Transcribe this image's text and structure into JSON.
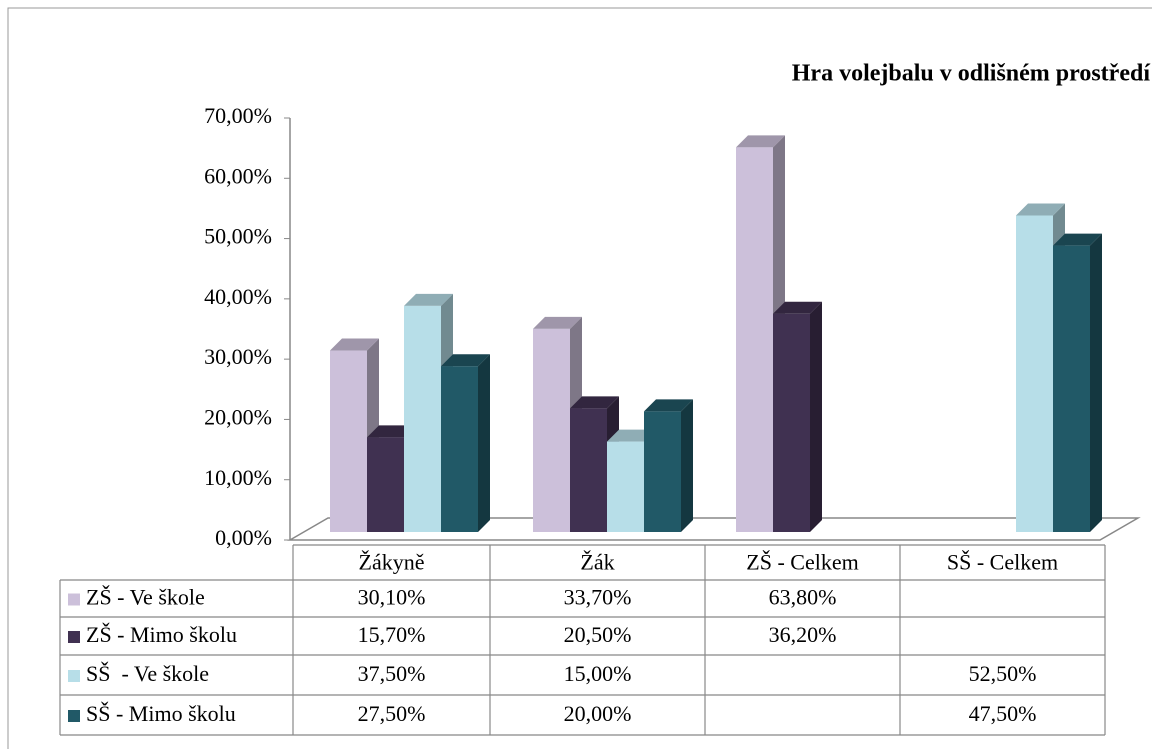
{
  "chart_data": {
    "type": "bar3d",
    "title": "Hra volejbalu v odlišném prostředí",
    "categories": [
      "Žákyně",
      "Žák",
      "ZŠ - Celkem",
      "SŠ - Celkem"
    ],
    "series": [
      {
        "name": "ZŠ - Ve škole",
        "color": "#ccc0da",
        "values": [
          30.1,
          33.7,
          63.8,
          null
        ],
        "value_labels": [
          "30,10%",
          "33,70%",
          "63,80%",
          null
        ]
      },
      {
        "name": "ZŠ - Mimo školu",
        "color": "#403151",
        "values": [
          15.7,
          20.5,
          36.2,
          null
        ],
        "value_labels": [
          "15,70%",
          "20,50%",
          "36,20%",
          null
        ]
      },
      {
        "name": "SŠ  - Ve škole",
        "color": "#b7dee8",
        "values": [
          37.5,
          15.0,
          null,
          52.5
        ],
        "value_labels": [
          "37,50%",
          "15,00%",
          null,
          "52,50%"
        ]
      },
      {
        "name": "SŠ - Mimo školu",
        "color": "#215967",
        "values": [
          27.5,
          20.0,
          null,
          47.5
        ],
        "value_labels": [
          "27,50%",
          "20,00%",
          null,
          "47,50%"
        ]
      }
    ],
    "ylim": [
      0,
      70
    ],
    "yticks": [
      {
        "value": 0,
        "label": "0,00%"
      },
      {
        "value": 10,
        "label": "10,00%"
      },
      {
        "value": 20,
        "label": "20,00%"
      },
      {
        "value": 30,
        "label": "30,00%"
      },
      {
        "value": 40,
        "label": "40,00%"
      },
      {
        "value": 50,
        "label": "50,00%"
      },
      {
        "value": 60,
        "label": "60,00%"
      },
      {
        "value": 70,
        "label": "70,00%"
      }
    ],
    "grid": false
  }
}
